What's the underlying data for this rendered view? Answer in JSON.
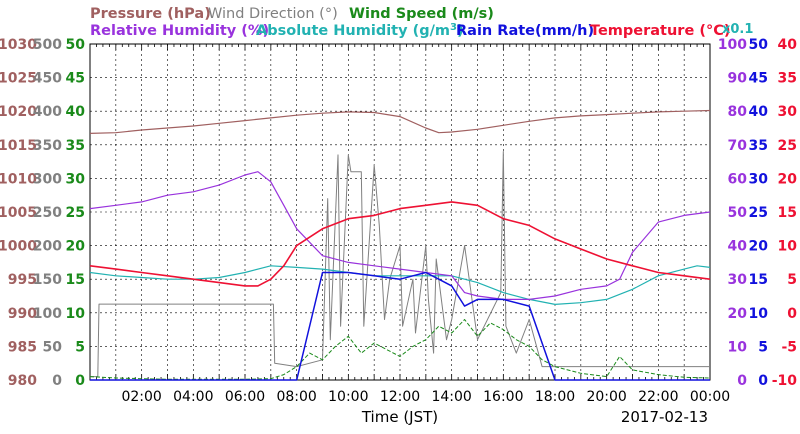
{
  "legend": {
    "pressure": "Pressure (hPa)",
    "wind_direction": "Wind Direction (°)",
    "wind_speed": "Wind Speed (m/s)",
    "rel_humidity": "Relative Humidity (%)",
    "abs_humidity_prefix": "Absolute Humidity (g/m",
    "abs_humidity_sup": "3",
    "abs_humidity_suffix": ")",
    "rain_rate": "Rain Rate(mm/h)",
    "temperature": "Temperature (°C)",
    "abs_scale_note": "x0.1"
  },
  "xlabel": "Time (JST)",
  "date": "2017-02-13",
  "colors": {
    "pressure": "#a06060",
    "wind_direction": "#808080",
    "wind_speed": "#1a8a1a",
    "rel_humidity": "#9933dd",
    "abs_humidity": "#22b2b2",
    "rain_rate": "#1111dd",
    "temperature": "#ee1133",
    "grid": "#000000"
  },
  "chart_data": {
    "type": "line",
    "x_ticks": [
      "02:00",
      "04:00",
      "06:00",
      "08:00",
      "10:00",
      "12:00",
      "14:00",
      "16:00",
      "18:00",
      "20:00",
      "22:00",
      "00:00"
    ],
    "xlim_hours": [
      0,
      24
    ],
    "axes": {
      "pressure": {
        "ylim": [
          980,
          1030
        ],
        "ticks": [
          "980",
          "985",
          "990",
          "995",
          "1000",
          "1005",
          "1010",
          "1015",
          "1020",
          "1025",
          "1030"
        ]
      },
      "wind_direction": {
        "ylim": [
          0,
          500
        ],
        "ticks": [
          "0",
          "50",
          "100",
          "150",
          "200",
          "250",
          "300",
          "350",
          "400",
          "450",
          "500"
        ]
      },
      "wind_speed": {
        "ylim": [
          0,
          50
        ],
        "ticks": [
          "0",
          "5",
          "10",
          "15",
          "20",
          "25",
          "30",
          "35",
          "40",
          "45",
          "50"
        ]
      },
      "rel_humidity": {
        "ylim": [
          0,
          100
        ],
        "ticks": [
          "0",
          "10",
          "20",
          "30",
          "40",
          "50",
          "60",
          "70",
          "80",
          "90",
          "100"
        ]
      },
      "rain_rate": {
        "ylim": [
          0,
          50
        ],
        "ticks": [
          "0",
          "5",
          "10",
          "15",
          "20",
          "25",
          "30",
          "35",
          "40",
          "45",
          "50"
        ]
      },
      "temperature": {
        "ylim": [
          -10,
          40
        ],
        "ticks": [
          "-10",
          "-5",
          "0",
          "5",
          "10",
          "15",
          "20",
          "25",
          "30",
          "35",
          "40"
        ]
      }
    },
    "series": [
      {
        "name": "Pressure (hPa)",
        "key": "pressure",
        "axis": "pressure",
        "x": [
          0,
          1,
          2,
          3,
          4,
          5,
          6,
          7,
          8,
          9,
          10,
          11,
          12,
          13,
          13.5,
          14,
          15,
          16,
          17,
          18,
          19,
          20,
          21,
          22,
          23,
          24
        ],
        "y": [
          1016.7,
          1016.8,
          1017.2,
          1017.5,
          1017.8,
          1018.2,
          1018.6,
          1019.0,
          1019.4,
          1019.7,
          1019.9,
          1019.8,
          1019.2,
          1017.5,
          1016.8,
          1016.9,
          1017.3,
          1017.9,
          1018.5,
          1019.0,
          1019.3,
          1019.5,
          1019.7,
          1019.9,
          1020.0,
          1020.1
        ]
      },
      {
        "name": "Relative Humidity (%)",
        "key": "rel_humidity",
        "axis": "rel_humidity",
        "x": [
          0,
          1,
          2,
          3,
          4,
          5,
          6,
          6.5,
          7,
          7.5,
          8,
          9,
          10,
          11,
          12,
          13,
          14,
          14.5,
          15,
          16,
          17,
          18,
          19,
          20,
          20.5,
          21,
          22,
          23,
          24
        ],
        "y": [
          51,
          52,
          53,
          55,
          56,
          58,
          61,
          62,
          59,
          52,
          45,
          37,
          35,
          34,
          33,
          32,
          31,
          26,
          25,
          24,
          24,
          25,
          27,
          28,
          30,
          38,
          47,
          49,
          50
        ]
      },
      {
        "name": "Absolute Humidity (g/m3)",
        "key": "abs_humidity",
        "axis": "rel_humidity",
        "x": [
          0,
          1,
          2,
          3,
          4,
          5,
          6,
          7,
          8,
          9,
          10,
          11,
          12,
          13,
          14,
          15,
          16,
          17,
          18,
          19,
          20,
          21,
          22,
          23,
          23.5,
          24
        ],
        "y": [
          32,
          31,
          30.5,
          30,
          30,
          30.5,
          32,
          34,
          33.5,
          33,
          32,
          31,
          31,
          31,
          31,
          29,
          26,
          24,
          22.5,
          23,
          24,
          27,
          31,
          33,
          34,
          33.5
        ]
      },
      {
        "name": "Rain Rate(mm/h)",
        "key": "rain_rate",
        "axis": "rain_rate",
        "x": [
          0,
          8,
          9,
          10,
          11,
          12,
          12.5,
          13,
          13.5,
          14,
          14.5,
          15,
          16,
          17,
          18,
          24
        ],
        "y": [
          0,
          0,
          16,
          16,
          15.5,
          15,
          15.5,
          16,
          15,
          14,
          11,
          12,
          12,
          11,
          0,
          0
        ]
      },
      {
        "name": "Temperature (°C)",
        "key": "temperature",
        "axis": "temperature",
        "x": [
          0,
          1,
          2,
          3,
          4,
          5,
          6,
          6.5,
          7,
          7.5,
          8,
          9,
          10,
          11,
          12,
          13,
          14,
          15,
          16,
          17,
          18,
          19,
          20,
          21,
          22,
          23,
          24
        ],
        "y": [
          7,
          6.5,
          6,
          5.5,
          5,
          4.5,
          4,
          4,
          5,
          7,
          10,
          12.5,
          14,
          14.5,
          15.5,
          16,
          16.5,
          16,
          14,
          13,
          11,
          9.5,
          8,
          7,
          6,
          5.5,
          5
        ]
      },
      {
        "name": "Wind Direction (°)",
        "key": "wind_direction",
        "axis": "wind_direction",
        "x": [
          0,
          0.3,
          0.35,
          3,
          6,
          7.1,
          7.15,
          8,
          9,
          9.2,
          9.3,
          9.6,
          9.7,
          10,
          10.1,
          10.5,
          10.6,
          11,
          11.2,
          11.4,
          11.6,
          12,
          12.1,
          12.5,
          12.6,
          13,
          13.1,
          13.3,
          13.4,
          13.8,
          14,
          14.5,
          15,
          15.9,
          16,
          16.1,
          16.5,
          17,
          17.5,
          18,
          18.5,
          19,
          19.5,
          20,
          20.5,
          21,
          21.5,
          22,
          22.5,
          23,
          24
        ],
        "y": [
          5,
          5,
          113,
          113,
          113,
          113,
          25,
          20,
          30,
          270,
          60,
          335,
          80,
          335,
          310,
          310,
          80,
          320,
          230,
          90,
          150,
          200,
          80,
          150,
          70,
          200,
          120,
          40,
          180,
          60,
          90,
          200,
          60,
          130,
          340,
          80,
          40,
          90,
          20,
          20,
          20,
          20,
          20,
          20,
          20,
          20,
          20,
          20,
          20,
          20,
          20
        ]
      },
      {
        "name": "Wind Speed (m/s)",
        "key": "wind_speed",
        "axis": "wind_speed",
        "x": [
          0,
          1,
          2,
          3,
          4,
          5,
          6,
          7,
          7.5,
          8,
          8.5,
          9,
          9.5,
          10,
          10.5,
          11,
          11.5,
          12,
          12.5,
          13,
          13.5,
          14,
          14.5,
          15,
          15.5,
          16,
          16.5,
          17,
          17.5,
          18,
          19,
          20,
          20.5,
          21,
          22,
          23,
          24
        ],
        "y": [
          0.5,
          0.3,
          0.2,
          0.1,
          0.1,
          0.1,
          0.1,
          0.2,
          0.8,
          2.0,
          4.0,
          3.0,
          5.0,
          6.5,
          4.0,
          5.5,
          4.5,
          3.5,
          5.0,
          6.0,
          8.0,
          7.0,
          9.0,
          6.5,
          8.5,
          7.5,
          6.0,
          5.0,
          3.0,
          2.0,
          1.0,
          0.5,
          3.5,
          1.5,
          0.8,
          0.4,
          0.3
        ]
      }
    ]
  }
}
